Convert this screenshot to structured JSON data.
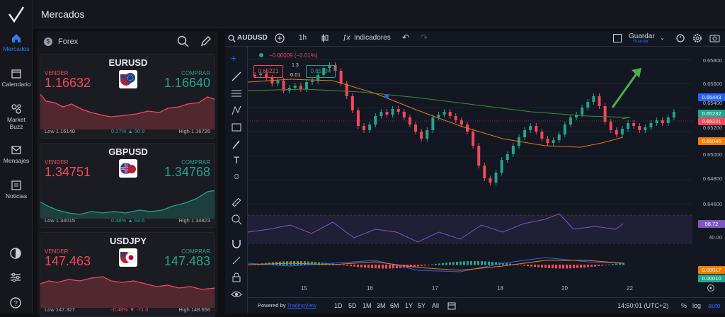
{
  "app": {
    "title": "Mercados"
  },
  "nav": [
    {
      "label": "Mercados",
      "icon": "home-icon",
      "active": true
    },
    {
      "label": "Calendario",
      "icon": "calendar-icon"
    },
    {
      "label": "Market Buzz",
      "icon": "buzz-icon"
    },
    {
      "label": "Mensajes",
      "icon": "mail-icon"
    },
    {
      "label": "Noticias",
      "icon": "news-icon"
    }
  ],
  "panel": {
    "category": "Forex"
  },
  "cards": [
    {
      "symbol": "EURUSD",
      "sell_label": "VENDER",
      "buy_label": "COMPRAR",
      "sell": "1.16632",
      "buy": "1.16640",
      "low": "Low 1.16140",
      "change": "0.27% ▲ 30.9",
      "high": "High 1.16726",
      "change_color": "#23a48c",
      "spark_color": "#f2495a"
    },
    {
      "symbol": "GBPUSD",
      "sell_label": "VENDER",
      "buy_label": "COMPRAR",
      "sell": "1.34751",
      "buy": "1.34768",
      "low": "Low 1.34015",
      "change": "0.48% ▲ 64.6",
      "high": "High 1.34823",
      "change_color": "#23a48c",
      "spark_color": "#23a48c"
    },
    {
      "symbol": "USDJPY",
      "sell_label": "VENDER",
      "buy_label": "COMPRAR",
      "sell": "147.463",
      "buy": "147.483",
      "low": "Low 147.327",
      "change": "-0.48% ▼ -71.0",
      "high": "High 148.656",
      "change_color": "#f2495a",
      "spark_color": "#f2495a"
    }
  ],
  "chart": {
    "symbol": "AUDUSD",
    "interval": "1h",
    "indicators_label": "Indicadores",
    "save_label": "Guardar",
    "save_sub": "Guardar",
    "change_text": "−0.00009 (−0.01%)",
    "bid_box": "0.65221",
    "ask_box": "0.65234",
    "spread": "0.01",
    "lot": "1.3",
    "price_axis": [
      "0.65800",
      "0.65600",
      "0.65400",
      "0.65200",
      "0.65000",
      "0.64800",
      "0.64600"
    ],
    "tags": [
      {
        "value": "0.65443",
        "color": "#2962ff"
      },
      {
        "value": "0.65232",
        "color": "#23a48c"
      },
      {
        "value": "0.65221",
        "color": "#f2495a"
      },
      {
        "value": "0.65045",
        "color": "#f57c00"
      }
    ],
    "rsi_tag": "58.72",
    "rsi_level": "40.00",
    "macd_tags": [
      {
        "value": "0.00017",
        "color": "#f57c00"
      },
      {
        "value": "0.00010",
        "color": "#23a48c"
      }
    ],
    "time_axis": [
      "15",
      "16",
      "17",
      "18",
      "20",
      "22"
    ],
    "ranges": [
      "1D",
      "5D",
      "1M",
      "3M",
      "6M",
      "1Y",
      "5Y",
      "All"
    ],
    "powered": "Powered by",
    "powered_brand": "TradingView",
    "clock": "14:50:01 (UTC+2)",
    "pct": "%",
    "log": "log",
    "auto": "auto"
  }
}
